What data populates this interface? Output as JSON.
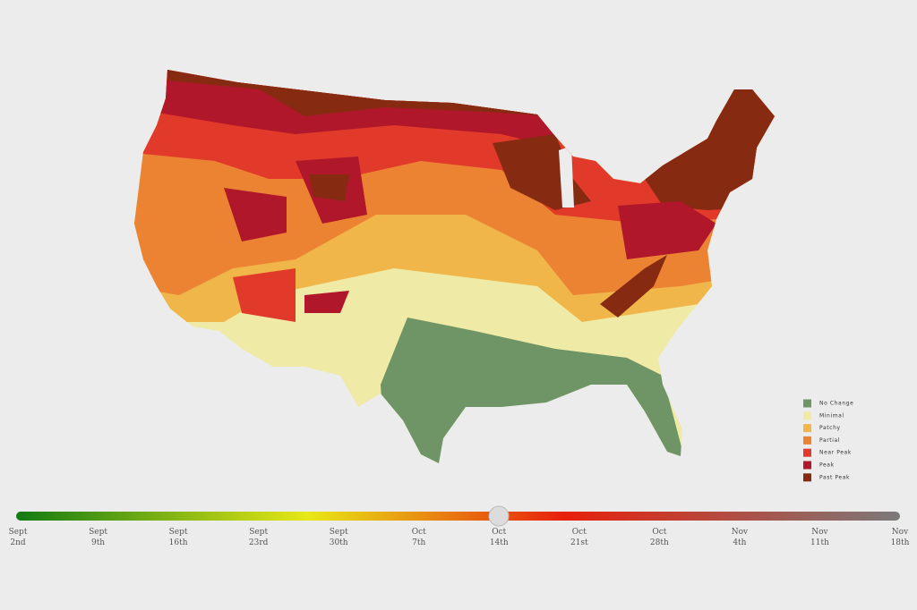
{
  "legend": [
    {
      "name": "No Change",
      "color": "#6f9566"
    },
    {
      "name": "Minimal",
      "color": "#efeaa6"
    },
    {
      "name": "Patchy",
      "color": "#f0b64a"
    },
    {
      "name": "Partial",
      "color": "#ec8332"
    },
    {
      "name": "Near Peak",
      "color": "#e1392a"
    },
    {
      "name": "Peak",
      "color": "#b0172b"
    },
    {
      "name": "Past Peak",
      "color": "#862b11"
    }
  ],
  "timeline": [
    {
      "month": "Sept",
      "day": "2nd"
    },
    {
      "month": "Sept",
      "day": "9th"
    },
    {
      "month": "Sept",
      "day": "16th"
    },
    {
      "month": "Sept",
      "day": "23rd"
    },
    {
      "month": "Sept",
      "day": "30th"
    },
    {
      "month": "Oct",
      "day": "7th"
    },
    {
      "month": "Oct",
      "day": "14th"
    },
    {
      "month": "Oct",
      "day": "21st"
    },
    {
      "month": "Oct",
      "day": "28th"
    },
    {
      "month": "Nov",
      "day": "4th"
    },
    {
      "month": "Nov",
      "day": "11th"
    },
    {
      "month": "Nov",
      "day": "18th"
    }
  ]
}
